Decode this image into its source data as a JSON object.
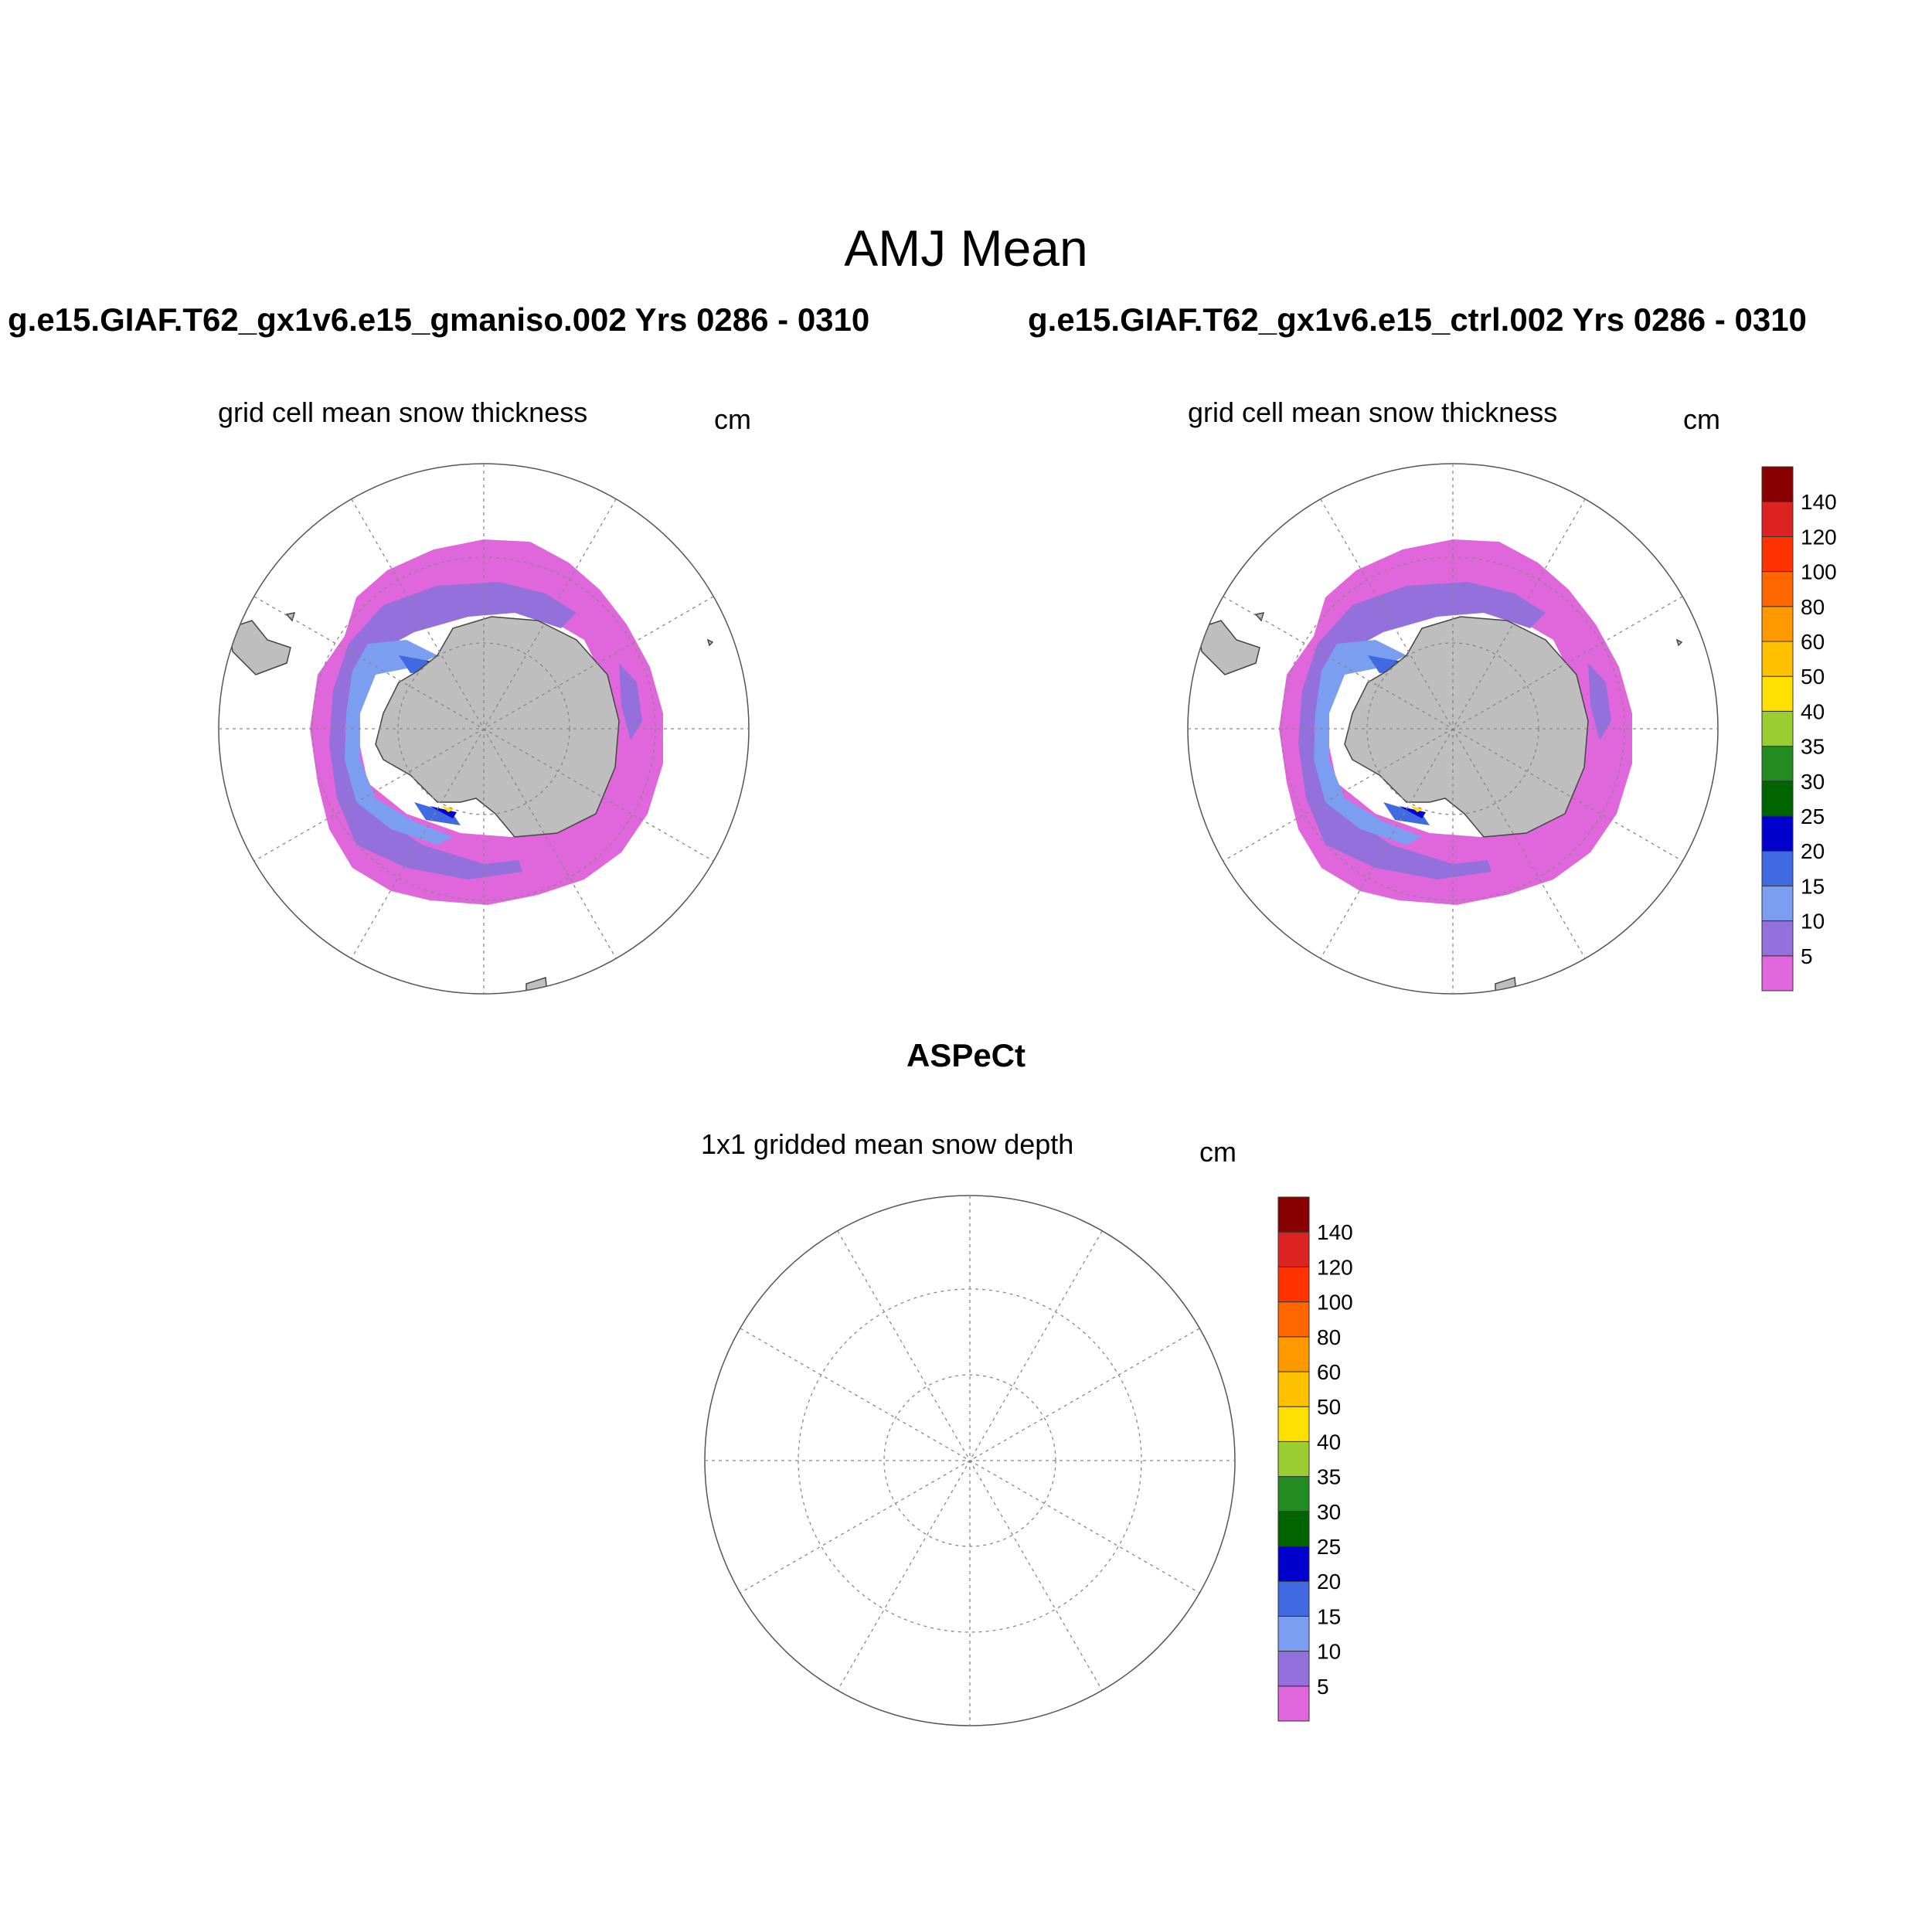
{
  "title": "AMJ Mean",
  "panels": [
    {
      "id": "gmaniso",
      "case_title": "g.e15.GIAF.T62_gx1v6.e15_gmaniso.002  Yrs 0286 - 0310",
      "subtitle": "grid cell mean snow thickness",
      "units": "cm"
    },
    {
      "id": "ctrl",
      "case_title": "g.e15.GIAF.T62_gx1v6.e15_ctrl.002  Yrs 0286 - 0310",
      "subtitle": "grid cell mean snow thickness",
      "units": "cm"
    }
  ],
  "obs": {
    "title": "ASPeCt",
    "subtitle": "1x1 gridded mean snow depth",
    "units": "cm"
  },
  "colorbar": {
    "labels": [
      "5",
      "10",
      "15",
      "20",
      "25",
      "30",
      "35",
      "40",
      "50",
      "60",
      "80",
      "100",
      "120",
      "140"
    ],
    "colors": [
      "#e066dc",
      "#9370db",
      "#7b9ef0",
      "#4169e1",
      "#0000cd",
      "#006400",
      "#228b22",
      "#9acd32",
      "#ffe000",
      "#ffc000",
      "#ff9900",
      "#ff6600",
      "#ff3300",
      "#dd2222",
      "#880000"
    ]
  },
  "colors": {
    "land": "#bebebe",
    "grid": "#888888"
  }
}
